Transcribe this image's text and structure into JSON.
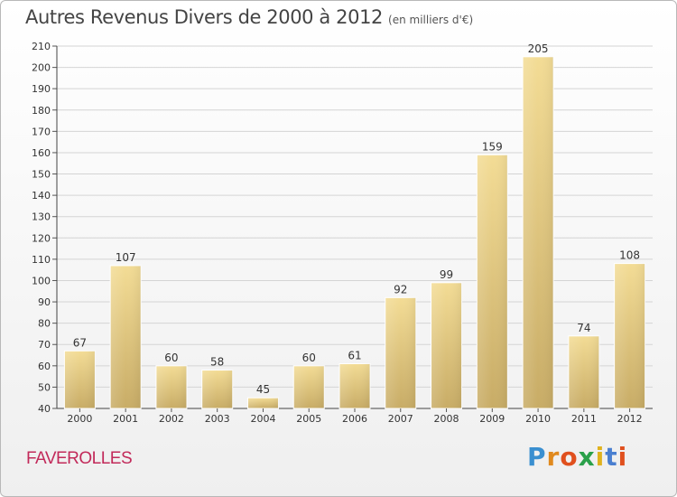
{
  "chart_data": {
    "type": "bar",
    "title": "Autres Revenus Divers de 2000 à 2012",
    "subtitle": "(en milliers d'€)",
    "categories": [
      "2000",
      "2001",
      "2002",
      "2003",
      "2004",
      "2005",
      "2006",
      "2007",
      "2008",
      "2009",
      "2010",
      "2011",
      "2012"
    ],
    "values": [
      67,
      107,
      60,
      58,
      45,
      60,
      61,
      92,
      99,
      159,
      205,
      74,
      108
    ],
    "ylim": [
      40,
      210
    ],
    "yticks": [
      40,
      50,
      60,
      70,
      80,
      90,
      100,
      110,
      120,
      130,
      140,
      150,
      160,
      170,
      180,
      190,
      200,
      210
    ],
    "grid": true,
    "bar_color": "#e8cf85"
  },
  "location": "FAVEROLLES",
  "brand": {
    "p": "P",
    "r": "r",
    "o": "o",
    "x": "x",
    "i1": "i",
    "t": "t",
    "i2": "i"
  }
}
